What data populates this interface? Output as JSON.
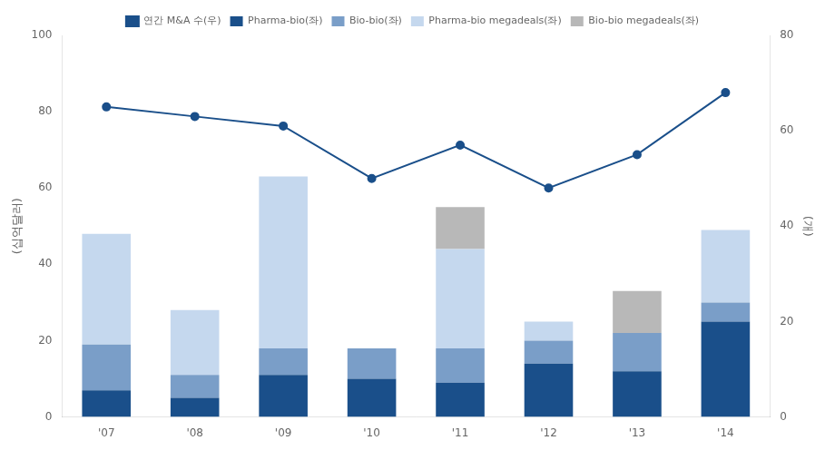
{
  "chart_data": {
    "type": "bar",
    "stacked": true,
    "categories": [
      "'07",
      "'08",
      "'09",
      "'10",
      "'11",
      "'12",
      "'13",
      "'14"
    ],
    "series": [
      {
        "name": "Pharma-bio(좌)",
        "color": "#1a4f8a",
        "values": [
          7,
          5,
          11,
          10,
          9,
          14,
          12,
          25
        ]
      },
      {
        "name": "Bio-bio(좌)",
        "color": "#7a9ec8",
        "values": [
          12,
          6,
          7,
          8,
          9,
          6,
          10,
          5
        ]
      },
      {
        "name": "Pharma-bio megadeals(좌)",
        "color": "#c5d8ee",
        "values": [
          29,
          17,
          45,
          0,
          26,
          5,
          0,
          19
        ]
      },
      {
        "name": "Bio-bio megadeals(좌)",
        "color": "#b8b8b8",
        "values": [
          0,
          0,
          0,
          0,
          11,
          0,
          11,
          0
        ]
      },
      {
        "name": "연간 M&A 수(우)",
        "color": "#1a4f8a",
        "type": "line",
        "axis": "y2",
        "marker": "circle",
        "line_style": "solid",
        "values": [
          65,
          63,
          61,
          50,
          57,
          48,
          55,
          68
        ]
      }
    ],
    "ylabel": "(십억달러)",
    "y2label": "(개)",
    "ylim": [
      0,
      100
    ],
    "yticks": [
      0,
      20,
      40,
      60,
      80,
      100
    ],
    "y2lim": [
      0,
      80
    ],
    "y2ticks": [
      0,
      20,
      40,
      60,
      80
    ],
    "grid": false,
    "legend": "top"
  }
}
